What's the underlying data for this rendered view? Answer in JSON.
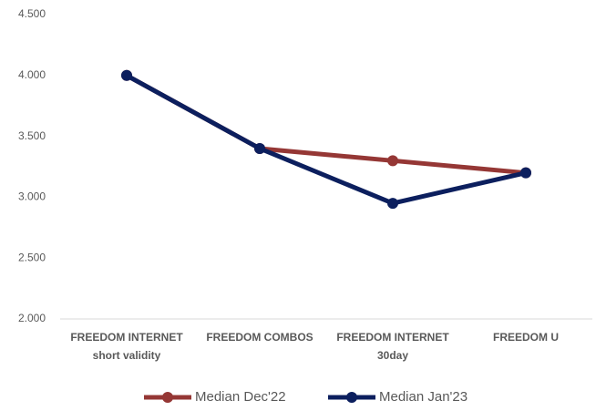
{
  "chart_data": {
    "type": "line",
    "categories": [
      [
        "FREEDOM INTERNET",
        "short validity"
      ],
      [
        "FREEDOM COMBOS"
      ],
      [
        "FREEDOM INTERNET",
        "30day"
      ],
      [
        "FREEDOM U"
      ]
    ],
    "series": [
      {
        "name": "Median Dec'22",
        "color": "#953735",
        "values": [
          4000,
          3400,
          3300,
          3200
        ]
      },
      {
        "name": "Median Jan'23",
        "color": "#0c1f5e",
        "values": [
          4000,
          3400,
          2950,
          3200
        ]
      }
    ],
    "ylim": [
      2000,
      4500
    ],
    "yticks": [
      {
        "value": 2000,
        "label": "2.000"
      },
      {
        "value": 2500,
        "label": "2.500"
      },
      {
        "value": 3000,
        "label": "3.000"
      },
      {
        "value": 3500,
        "label": "3.500"
      },
      {
        "value": 4000,
        "label": "4.000"
      },
      {
        "value": 4500,
        "label": "4.500"
      }
    ],
    "grid": false,
    "legend": "bottom"
  }
}
